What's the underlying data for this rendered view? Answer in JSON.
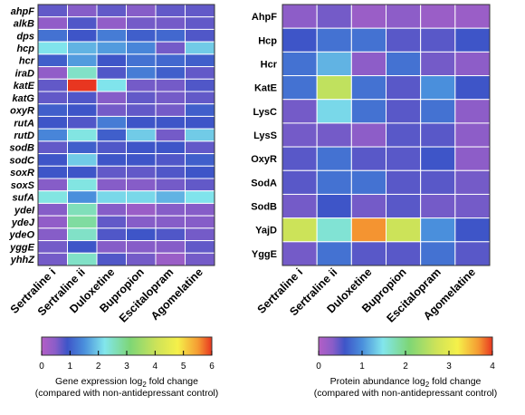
{
  "chart_data": [
    {
      "type": "heatmap",
      "columns": [
        "Sertraline i",
        "Sertraline ii",
        "Duloxetine",
        "Bupropion",
        "Escitalopram",
        "Agomelatine"
      ],
      "rows": [
        "ahpF",
        "alkB",
        "dps",
        "hcp",
        "hcr",
        "iraD",
        "katE",
        "katG",
        "oxyR",
        "rutA",
        "rutD",
        "sodB",
        "sodC",
        "soxR",
        "soxS",
        "sufA",
        "ydeI",
        "ydeJ",
        "ydeO",
        "yggE",
        "yhhZ"
      ],
      "values": [
        [
          0.7,
          0.5,
          0.7,
          0.5,
          0.7,
          0.7
        ],
        [
          0.4,
          0.8,
          0.4,
          0.6,
          0.6,
          0.7
        ],
        [
          1.2,
          0.9,
          1.3,
          1.0,
          1.1,
          0.8
        ],
        [
          2.2,
          1.8,
          1.6,
          1.4,
          0.6,
          2.0
        ],
        [
          1.0,
          1.6,
          0.9,
          1.2,
          1.1,
          1.0
        ],
        [
          0.4,
          2.5,
          0.8,
          1.3,
          1.0,
          0.7
        ],
        [
          0.7,
          6.0,
          2.2,
          0.6,
          0.6,
          0.8
        ],
        [
          0.7,
          0.8,
          0.5,
          0.7,
          0.6,
          0.7
        ],
        [
          1.0,
          0.9,
          0.6,
          0.7,
          0.6,
          1.0
        ],
        [
          0.9,
          0.8,
          1.3,
          0.9,
          0.9,
          0.9
        ],
        [
          1.4,
          2.3,
          1.0,
          2.0,
          0.6,
          2.0
        ],
        [
          0.7,
          1.0,
          0.8,
          0.9,
          0.9,
          0.7
        ],
        [
          0.9,
          2.0,
          0.9,
          0.9,
          0.8,
          1.0
        ],
        [
          0.9,
          0.9,
          0.7,
          0.7,
          0.8,
          0.9
        ],
        [
          0.5,
          2.3,
          0.5,
          0.5,
          0.6,
          0.7
        ],
        [
          2.3,
          1.5,
          2.1,
          2.1,
          1.8,
          2.2
        ],
        [
          0.5,
          2.6,
          0.5,
          0.3,
          0.5,
          0.5
        ],
        [
          0.4,
          2.8,
          0.7,
          0.5,
          0.5,
          0.5
        ],
        [
          0.5,
          2.5,
          0.8,
          0.9,
          0.8,
          0.6
        ],
        [
          0.6,
          0.9,
          0.5,
          0.5,
          0.5,
          0.7
        ],
        [
          0.6,
          2.5,
          0.8,
          0.6,
          0.3,
          0.6
        ]
      ],
      "colorbar": {
        "ticks": [
          0,
          1,
          2,
          3,
          4,
          5,
          6
        ],
        "min": 0,
        "max": 6,
        "label_line1": "Gene expression log",
        "label_subscript": "2",
        "label_line1_rest": " fold change",
        "label_line2": "(compared with non-antidepressant control)"
      },
      "colormap": "blue-purple-cyan-green-yellow-red"
    },
    {
      "type": "heatmap",
      "columns": [
        "Sertraline i",
        "Sertraline ii",
        "Duloxetine",
        "Bupropion",
        "Escitalopram",
        "Agomelatine"
      ],
      "rows": [
        "AhpF",
        "Hcp",
        "Hcr",
        "KatE",
        "LysC",
        "LysS",
        "OxyR",
        "SodA",
        "SodB",
        "YajD",
        "YggE"
      ],
      "values": [
        [
          0.3,
          0.4,
          0.2,
          0.3,
          0.2,
          0.2
        ],
        [
          0.6,
          0.8,
          0.8,
          0.5,
          0.5,
          0.6
        ],
        [
          0.8,
          1.2,
          0.3,
          0.8,
          0.4,
          0.3
        ],
        [
          0.8,
          2.6,
          0.8,
          0.5,
          1.0,
          0.6
        ],
        [
          0.4,
          1.4,
          0.8,
          0.5,
          0.8,
          0.3
        ],
        [
          0.4,
          0.4,
          0.3,
          0.5,
          0.5,
          0.3
        ],
        [
          0.5,
          0.8,
          0.5,
          0.5,
          0.6,
          0.3
        ],
        [
          0.5,
          0.8,
          0.8,
          0.5,
          0.5,
          0.4
        ],
        [
          0.4,
          0.6,
          0.4,
          0.5,
          0.4,
          0.4
        ],
        [
          2.7,
          1.6,
          3.7,
          2.7,
          1.0,
          0.6
        ],
        [
          0.4,
          0.8,
          0.5,
          0.5,
          0.8,
          0.5
        ]
      ],
      "colorbar": {
        "ticks": [
          0,
          1,
          2,
          3,
          4
        ],
        "min": 0,
        "max": 4,
        "label_line1": "Protein abundance log",
        "label_subscript": "2",
        "label_line1_rest": " fold change",
        "label_line2": "(compared with non-antidepressant control)"
      },
      "colormap": "blue-purple-cyan-green-yellow-red"
    }
  ]
}
